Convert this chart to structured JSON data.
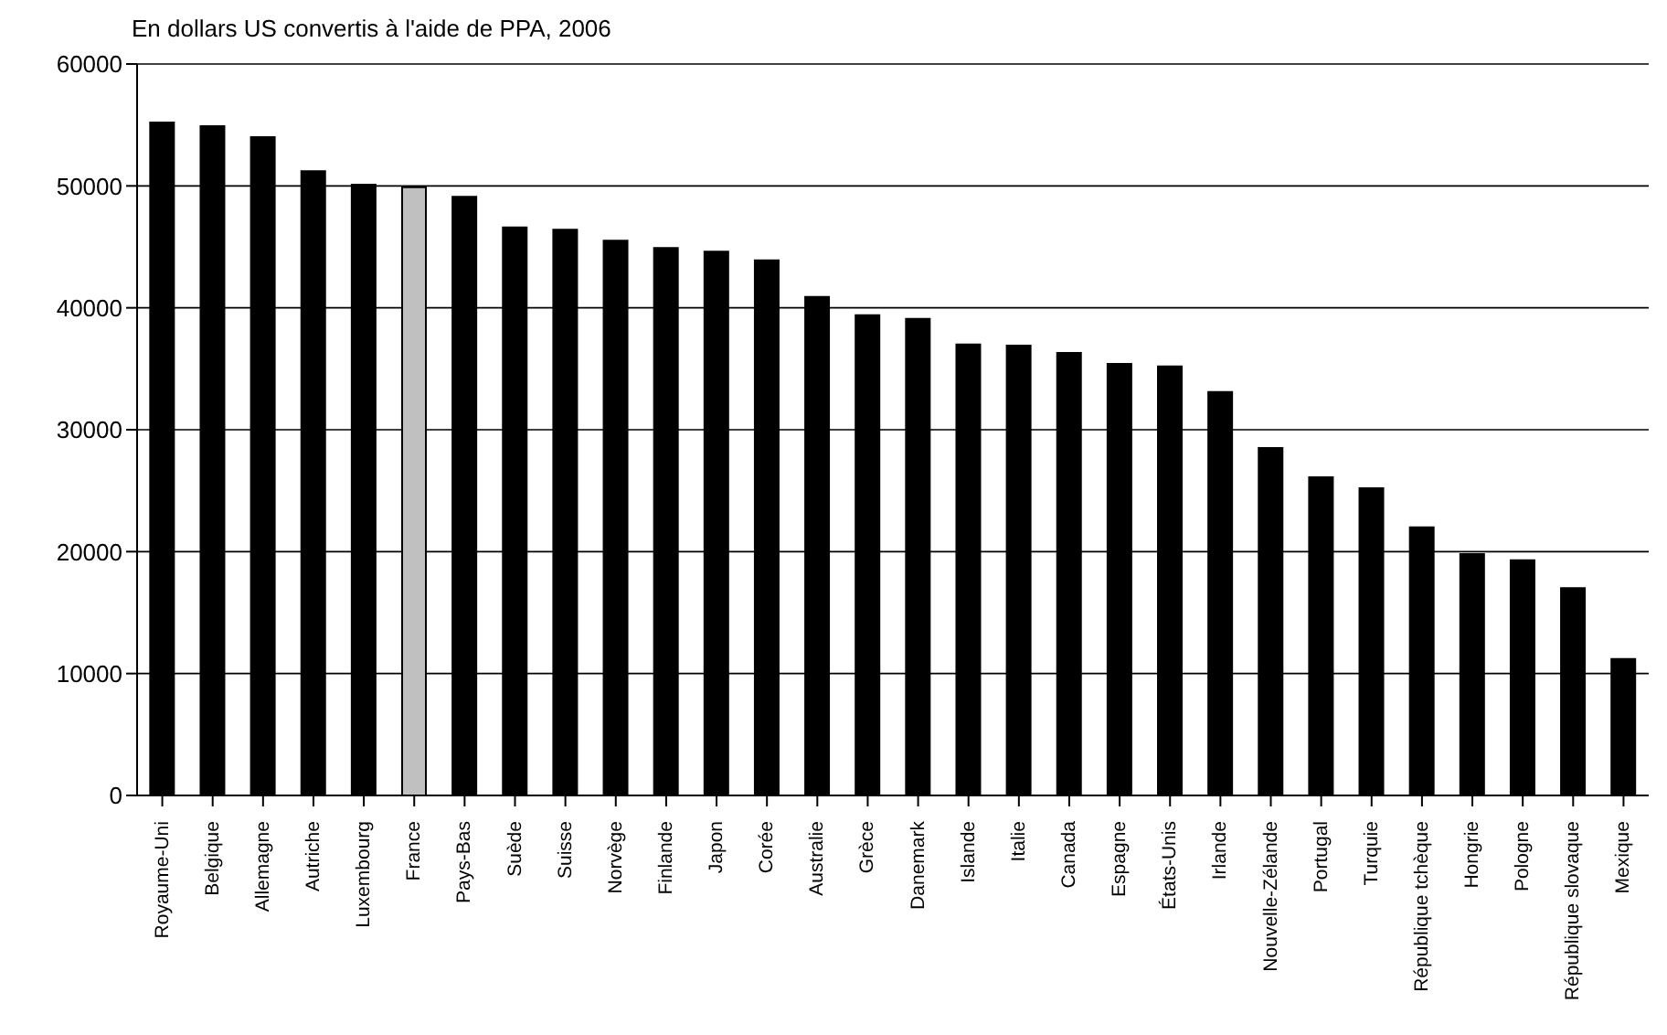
{
  "chart_data": {
    "type": "bar",
    "title": "En dollars US convertis à l'aide de PPA, 2006",
    "categories": [
      "Royaume-Uni",
      "Belgique",
      "Allemagne",
      "Autriche",
      "Luxembourg",
      "France",
      "Pays-Bas",
      "Suède",
      "Suisse",
      "Norvège",
      "Finlande",
      "Japon",
      "Corée",
      "Australie",
      "Grèce",
      "Danemark",
      "Islande",
      "Italie",
      "Canada",
      "Espagne",
      "États-Unis",
      "Irlande",
      "Nouvelle-Zélande",
      "Portugal",
      "Turquie",
      "République tchèque",
      "Hongrie",
      "Pologne",
      "République slovaque",
      "Mexique"
    ],
    "values": [
      55200,
      54900,
      54000,
      51200,
      50100,
      49900,
      49100,
      46600,
      46400,
      45500,
      44900,
      44600,
      43900,
      40900,
      39400,
      39100,
      37000,
      36900,
      36300,
      35400,
      35200,
      33100,
      28500,
      26100,
      25200,
      22000,
      19800,
      19300,
      17000,
      11200
    ],
    "colors": [
      "#000000",
      "#000000",
      "#000000",
      "#000000",
      "#000000",
      "#c0c0c0",
      "#000000",
      "#000000",
      "#000000",
      "#000000",
      "#000000",
      "#000000",
      "#000000",
      "#000000",
      "#000000",
      "#000000",
      "#000000",
      "#000000",
      "#000000",
      "#000000",
      "#000000",
      "#000000",
      "#000000",
      "#000000",
      "#000000",
      "#000000",
      "#000000",
      "#000000",
      "#000000",
      "#000000"
    ],
    "ylim": [
      0,
      60000
    ],
    "yticks": [
      0,
      10000,
      20000,
      30000,
      40000,
      50000,
      60000
    ],
    "grid": "y"
  }
}
